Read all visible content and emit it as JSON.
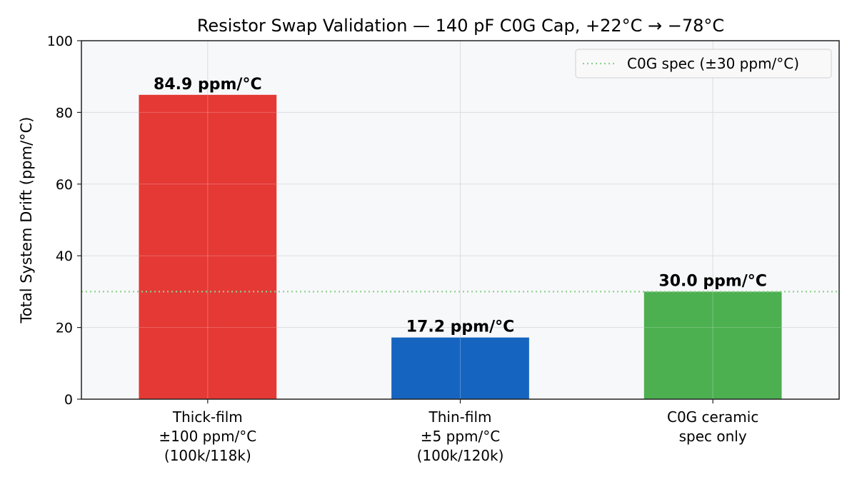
{
  "chart_data": {
    "type": "bar",
    "title": "Resistor Swap Validation — 140 pF C0G Cap, +22°C → −78°C",
    "xlabel": "",
    "ylabel": "Total System Drift (ppm/°C)",
    "ylim": [
      0,
      100
    ],
    "yticks": [
      0,
      20,
      40,
      60,
      80,
      100
    ],
    "grid": true,
    "categories": [
      [
        "Thick-film",
        "±100 ppm/°C",
        "(100k/118k)"
      ],
      [
        "Thin-film",
        "±5 ppm/°C",
        "(100k/120k)"
      ],
      [
        "C0G ceramic",
        "spec only"
      ]
    ],
    "values": [
      84.9,
      17.2,
      30.0
    ],
    "data_labels": [
      "84.9 ppm/°C",
      "17.2 ppm/°C",
      "30.0 ppm/°C"
    ],
    "bar_colors": [
      "#e53935",
      "#1565c0",
      "#4caf50"
    ],
    "reference_line": {
      "value": 30,
      "label": "C0G spec (±30 ppm/°C)",
      "color": "#8fd18f",
      "style": "dotted"
    },
    "legend_placement": "top-right",
    "plot_background": "#f7f8fa"
  }
}
